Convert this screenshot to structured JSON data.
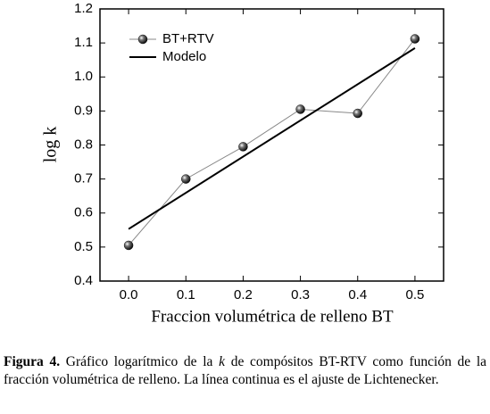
{
  "chart_data": {
    "type": "line",
    "x_label": "Fraccion volumétrica de relleno BT",
    "y_label": "log k",
    "x": [
      0.0,
      0.1,
      0.2,
      0.3,
      0.4,
      0.5
    ],
    "series": [
      {
        "name": "BT+RTV",
        "color": "#888888",
        "marker_color": "#111111",
        "values": [
          0.505,
          0.7,
          0.795,
          0.905,
          0.893,
          1.112
        ]
      },
      {
        "name": "Modelo",
        "color": "#000000",
        "x": [
          0.0,
          0.5
        ],
        "values": [
          0.553,
          1.085
        ]
      }
    ],
    "xlim": [
      -0.05,
      0.55
    ],
    "ylim": [
      0.4,
      1.2
    ],
    "xticks": [
      {
        "value": 0,
        "label": "0.0"
      },
      0.1,
      0.2,
      0.3,
      0.4,
      0.5
    ],
    "yticks": [
      0.4,
      0.5,
      0.6,
      0.7,
      0.8,
      0.9,
      {
        "value": 1,
        "label": "1.0"
      },
      1.1,
      1.2
    ],
    "legend": "upper-left"
  },
  "caption": {
    "label": "Figura 4.",
    "text_before": "Gráfico logarítmico de la",
    "variable": "k",
    "text_after": "de compósitos BT-RTV como función de la fracción volumétrica de relleno. La línea continua es el ajuste de Lichtenecker."
  }
}
